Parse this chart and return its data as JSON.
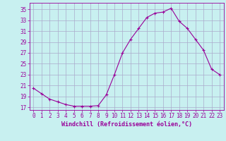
{
  "x": [
    0,
    1,
    2,
    3,
    4,
    5,
    6,
    7,
    8,
    9,
    10,
    11,
    12,
    13,
    14,
    15,
    16,
    17,
    18,
    19,
    20,
    21,
    22,
    23
  ],
  "y": [
    20.5,
    19.5,
    18.5,
    18.0,
    17.5,
    17.2,
    17.2,
    17.2,
    17.3,
    19.3,
    23.0,
    27.0,
    29.5,
    31.5,
    33.5,
    34.3,
    34.5,
    35.2,
    32.8,
    31.5,
    29.5,
    27.5,
    24.0,
    23.0
  ],
  "line_color": "#990099",
  "marker": "+",
  "bg_color": "#c8f0f0",
  "grid_color": "#aaaacc",
  "xlabel": "Windchill (Refroidissement éolien,°C)",
  "yticks": [
    17,
    19,
    21,
    23,
    25,
    27,
    29,
    31,
    33,
    35
  ],
  "xticks": [
    0,
    1,
    2,
    3,
    4,
    5,
    6,
    7,
    8,
    9,
    10,
    11,
    12,
    13,
    14,
    15,
    16,
    17,
    18,
    19,
    20,
    21,
    22,
    23
  ],
  "xlim": [
    -0.5,
    23.5
  ],
  "ylim": [
    16.5,
    36.2
  ],
  "tick_fontsize": 5.5,
  "xlabel_fontsize": 6.0,
  "line_width": 0.8,
  "marker_size": 3.0
}
